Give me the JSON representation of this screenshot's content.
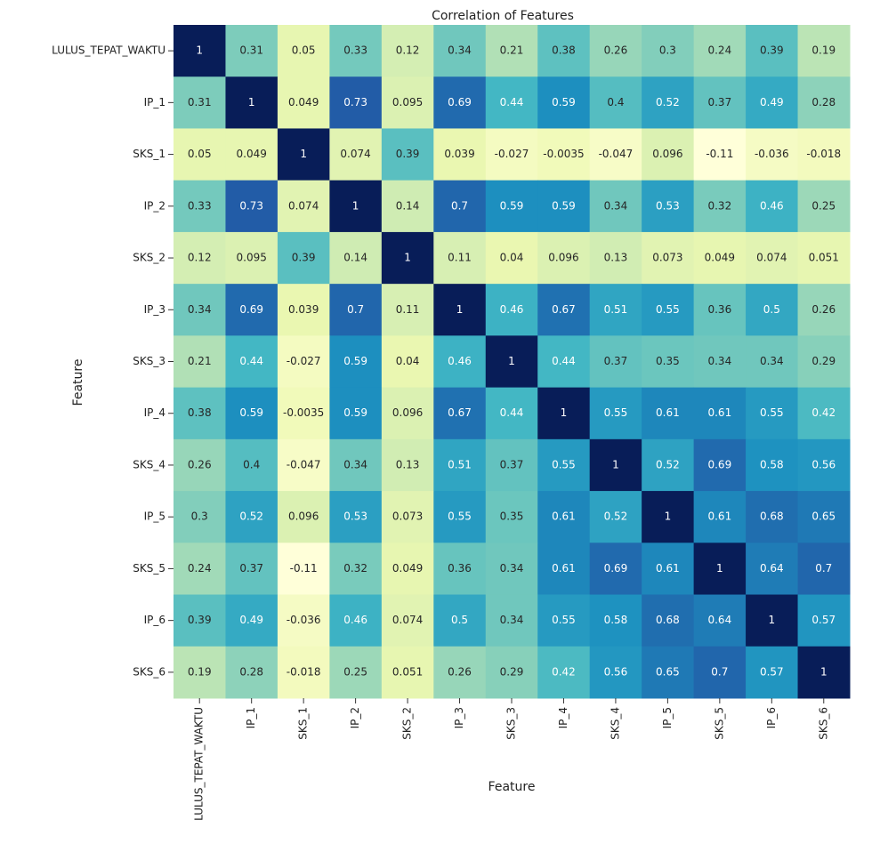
{
  "chart_data": {
    "type": "heatmap",
    "title": "Correlation of Features",
    "xlabel": "Feature",
    "ylabel": "Feature",
    "x_categories": [
      "LULUS_TEPAT_WAKTU",
      "IP_1",
      "SKS_1",
      "IP_2",
      "SKS_2",
      "IP_3",
      "SKS_3",
      "IP_4",
      "SKS_4",
      "IP_5",
      "SKS_5",
      "IP_6",
      "SKS_6"
    ],
    "y_categories": [
      "LULUS_TEPAT_WAKTU",
      "IP_1",
      "SKS_1",
      "IP_2",
      "SKS_2",
      "IP_3",
      "SKS_3",
      "IP_4",
      "SKS_4",
      "IP_5",
      "SKS_5",
      "IP_6",
      "SKS_6"
    ],
    "values": [
      [
        1,
        0.31,
        0.05,
        0.33,
        0.12,
        0.34,
        0.21,
        0.38,
        0.26,
        0.3,
        0.24,
        0.39,
        0.19
      ],
      [
        0.31,
        1,
        0.049,
        0.73,
        0.095,
        0.69,
        0.44,
        0.59,
        0.4,
        0.52,
        0.37,
        0.49,
        0.28
      ],
      [
        0.05,
        0.049,
        1,
        0.074,
        0.39,
        0.039,
        -0.027,
        -0.0035,
        -0.047,
        0.096,
        -0.11,
        -0.036,
        -0.018
      ],
      [
        0.33,
        0.73,
        0.074,
        1,
        0.14,
        0.7,
        0.59,
        0.59,
        0.34,
        0.53,
        0.32,
        0.46,
        0.25
      ],
      [
        0.12,
        0.095,
        0.39,
        0.14,
        1,
        0.11,
        0.04,
        0.096,
        0.13,
        0.073,
        0.049,
        0.074,
        0.051
      ],
      [
        0.34,
        0.69,
        0.039,
        0.7,
        0.11,
        1,
        0.46,
        0.67,
        0.51,
        0.55,
        0.36,
        0.5,
        0.26
      ],
      [
        0.21,
        0.44,
        -0.027,
        0.59,
        0.04,
        0.46,
        1,
        0.44,
        0.37,
        0.35,
        0.34,
        0.34,
        0.29
      ],
      [
        0.38,
        0.59,
        -0.0035,
        0.59,
        0.096,
        0.67,
        0.44,
        1,
        0.55,
        0.61,
        0.61,
        0.55,
        0.42
      ],
      [
        0.26,
        0.4,
        -0.047,
        0.34,
        0.13,
        0.51,
        0.37,
        0.55,
        1,
        0.52,
        0.69,
        0.58,
        0.56
      ],
      [
        0.3,
        0.52,
        0.096,
        0.53,
        0.073,
        0.55,
        0.35,
        0.61,
        0.52,
        1,
        0.61,
        0.68,
        0.65
      ],
      [
        0.24,
        0.37,
        -0.11,
        0.32,
        0.049,
        0.36,
        0.34,
        0.61,
        0.69,
        0.61,
        1,
        0.64,
        0.7
      ],
      [
        0.39,
        0.49,
        -0.036,
        0.46,
        0.074,
        0.5,
        0.34,
        0.55,
        0.58,
        0.68,
        0.64,
        1,
        0.57
      ],
      [
        0.19,
        0.28,
        -0.018,
        0.25,
        0.051,
        0.26,
        0.29,
        0.42,
        0.56,
        0.65,
        0.7,
        0.57,
        1
      ]
    ],
    "colormap": [
      "#ffffd9",
      "#edf8b1",
      "#c7e9b4",
      "#7fcdbb",
      "#41b6c4",
      "#1d91c0",
      "#225ea8",
      "#253494",
      "#081d58"
    ]
  }
}
